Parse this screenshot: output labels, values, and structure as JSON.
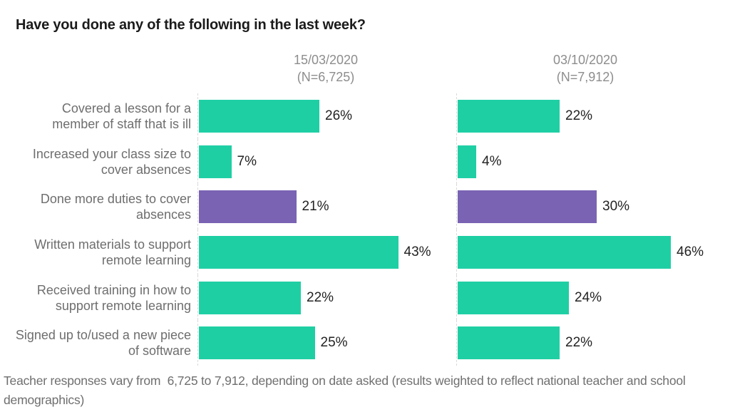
{
  "chart_data": {
    "type": "bar",
    "orientation": "horizontal",
    "title": "Have you done any of the following in the last week?",
    "panels": [
      {
        "date_label": "15/03/2020",
        "n_label": "(N=6,725)"
      },
      {
        "date_label": "03/10/2020",
        "n_label": "(N=7,912)"
      }
    ],
    "categories": [
      "Covered a lesson for a\nmember of staff that is ill",
      "Increased your class size to\ncover absences",
      "Done more duties to cover\nabsences",
      "Written materials to support\nremote learning",
      "Received training in how to\nsupport remote learning",
      "Signed up to/used a new piece\nof software"
    ],
    "series": [
      {
        "name": "15/03/2020",
        "values": [
          26,
          7,
          21,
          43,
          22,
          25
        ]
      },
      {
        "name": "03/10/2020",
        "values": [
          22,
          4,
          30,
          46,
          24,
          22
        ]
      }
    ],
    "value_suffix": "%",
    "highlight_index": 2,
    "colors": {
      "bar": "#1fcfa4",
      "highlight": "#7a63b3"
    },
    "axis_range": [
      0,
      50
    ],
    "grid": false,
    "legend": "none",
    "footnote": "Teacher responses vary from  6,725 to 7,912, depending on date asked (results weighted to reflect national teacher and school demographics)"
  }
}
